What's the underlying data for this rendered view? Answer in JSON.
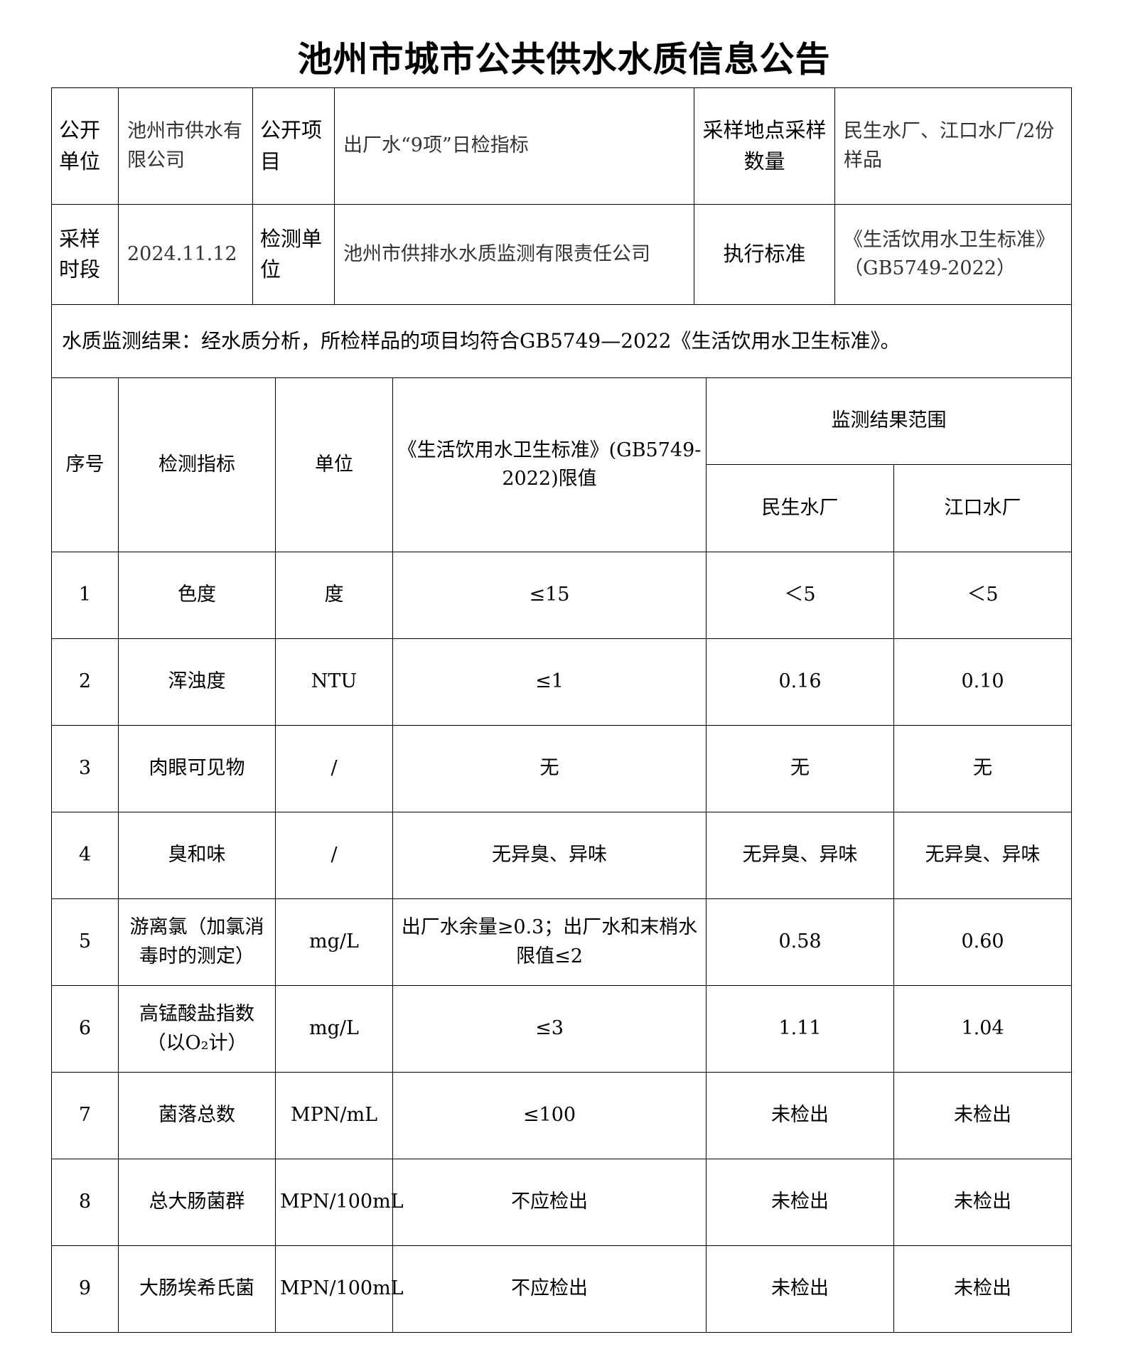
{
  "title": "池州市城市公共供水水质信息公告",
  "info": {
    "publisher_label": "公开单位",
    "publisher": "池州市供水有限公司",
    "item_label": "公开项目",
    "item": "出厂水“9项”日检指标",
    "site_label": "采样地点采样数量",
    "site": "民生水厂、江口水厂/2份样品",
    "period_label": "采样时段",
    "period": "2024.11.12",
    "lab_label": "检测单位",
    "lab": "池州市供排水水质监测有限责任公司",
    "standard_label": "执行标准",
    "standard": "《生活饮用水卫生标准》（GB5749-2022）"
  },
  "summary": "水质监测结果：经水质分析，所检样品的项目均符合GB5749—2022《生活饮用水卫生标准》。",
  "table": {
    "headers": {
      "no": "序号",
      "indicator": "检测指标",
      "unit": "单位",
      "limit": "《生活饮用水卫生标准》(GB5749-2022)限值",
      "range": "监测结果范围",
      "plant1": "民生水厂",
      "plant2": "江口水厂"
    },
    "rows": [
      {
        "no": "1",
        "indicator": "色度",
        "unit": "度",
        "limit": "≤15",
        "plant1": "＜5",
        "plant2": "＜5"
      },
      {
        "no": "2",
        "indicator": "浑浊度",
        "unit": "NTU",
        "limit": "≤1",
        "plant1": "0.16",
        "plant2": "0.10"
      },
      {
        "no": "3",
        "indicator": "肉眼可见物",
        "unit": "/",
        "limit": "无",
        "plant1": "无",
        "plant2": "无"
      },
      {
        "no": "4",
        "indicator": "臭和味",
        "unit": "/",
        "limit": "无异臭、异味",
        "plant1": "无异臭、异味",
        "plant2": "无异臭、异味"
      },
      {
        "no": "5",
        "indicator": "游离氯（加氯消毒时的测定）",
        "unit": "mg/L",
        "limit": "出厂水余量≥0.3；出厂水和末梢水限值≤2",
        "plant1": "0.58",
        "plant2": "0.60"
      },
      {
        "no": "6",
        "indicator": "高锰酸盐指数（以O₂计）",
        "unit": "mg/L",
        "limit": "≤3",
        "plant1": "1.11",
        "plant2": "1.04"
      },
      {
        "no": "7",
        "indicator": "菌落总数",
        "unit": "MPN/mL",
        "limit": "≤100",
        "plant1": "未检出",
        "plant2": "未检出"
      },
      {
        "no": "8",
        "indicator": "总大肠菌群",
        "unit": "MPN/100mL",
        "limit": "不应检出",
        "plant1": "未检出",
        "plant2": "未检出"
      },
      {
        "no": "9",
        "indicator": "大肠埃希氏菌",
        "unit": "MPN/100mL",
        "limit": "不应检出",
        "plant1": "未检出",
        "plant2": "未检出"
      }
    ]
  }
}
